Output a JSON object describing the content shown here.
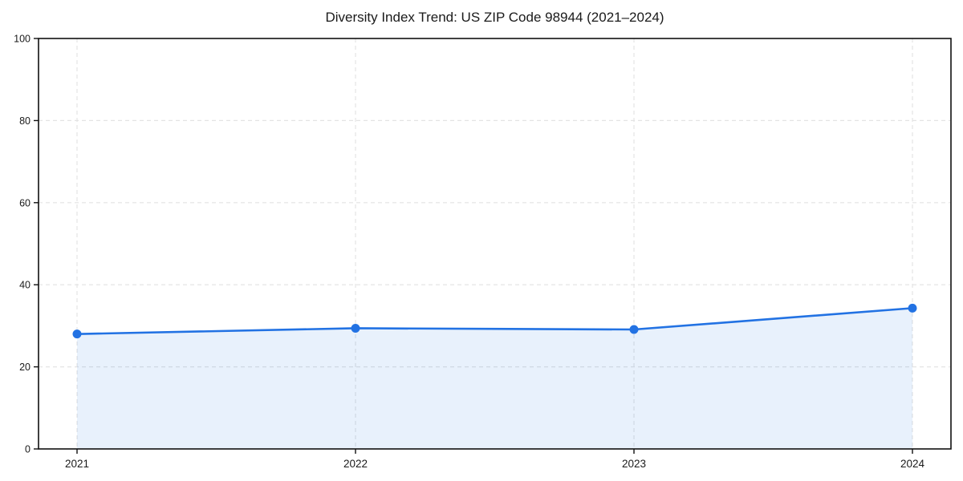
{
  "chart_data": {
    "type": "line",
    "title": "Diversity Index Trend: US ZIP Code 98944 (2021–2024)",
    "categories": [
      "2021",
      "2022",
      "2023",
      "2024"
    ],
    "series": [
      {
        "name": "Diversity Index",
        "values": [
          28.0,
          29.4,
          29.1,
          34.3
        ]
      }
    ],
    "xlabel": "",
    "ylabel": "",
    "ylim": [
      0,
      100
    ],
    "yticks": [
      0,
      20,
      40,
      60,
      80,
      100
    ],
    "grid": "dashed horizontal and vertical",
    "legend": "none",
    "area_fill": true,
    "colors": {
      "line": "#2272e3",
      "marker": "#2272e3",
      "area": "rgba(34, 114, 227, 0.10)",
      "grid": "#e4e4e4",
      "spine": "#111111",
      "tick_text": "#1a1a1a"
    }
  }
}
